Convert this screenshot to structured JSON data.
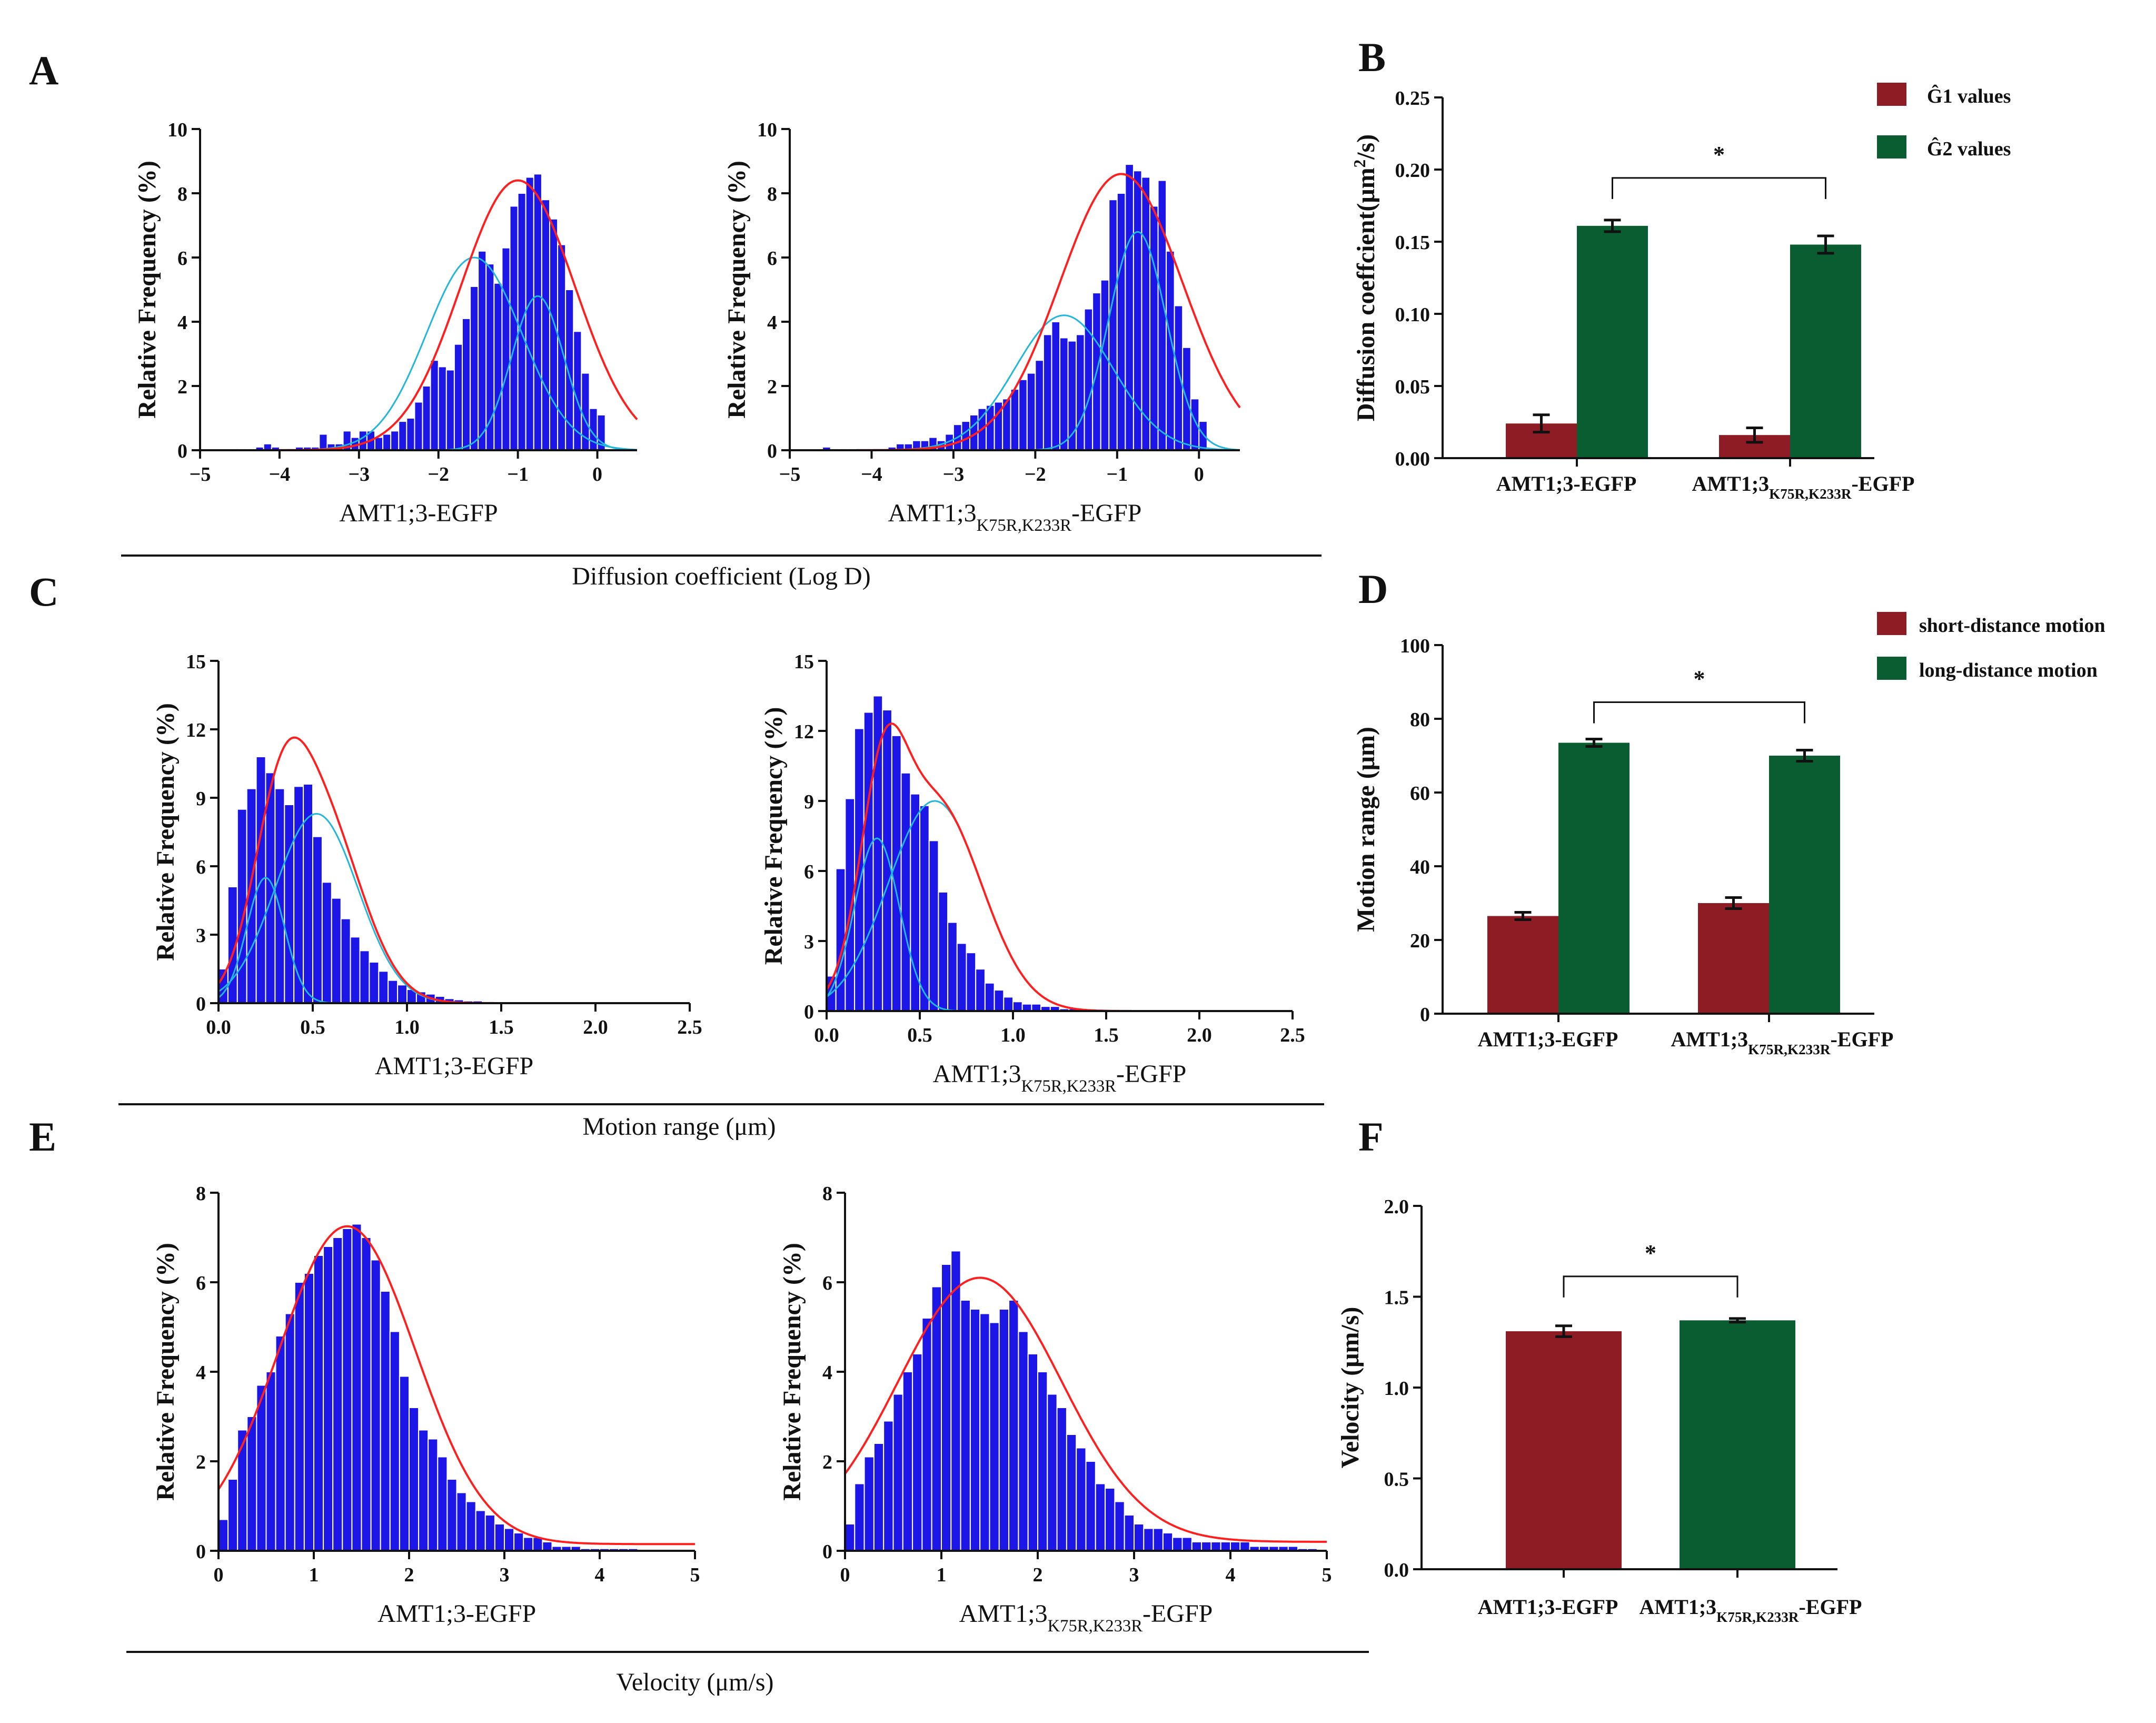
{
  "panel_labels": {
    "A": "A",
    "B": "B",
    "C": "C",
    "D": "D",
    "E": "E",
    "F": "F"
  },
  "colors": {
    "hist": "#1c17e6",
    "fit": "#ff1f1f",
    "comp": "#21b6dc",
    "red_bar": "#8e1c24",
    "green_bar": "#0a5d31"
  },
  "group_titles": {
    "diffusion": "Diffusion coefficient (Log D)",
    "motion": "Motion range (μm)",
    "velocity": "Velocity (μm/s)"
  },
  "chart_data": [
    {
      "id": "A1",
      "type": "bar",
      "title": "",
      "xlabel": "AMT1;3-EGFP",
      "ylabel": "Relative Frequency (%)",
      "xlim": [
        -5,
        0.5
      ],
      "ylim": [
        0,
        10
      ],
      "xticks": [
        -5,
        -4,
        -3,
        -2,
        -1,
        0
      ],
      "yticks": [
        0,
        2,
        4,
        6,
        8,
        10
      ],
      "bin_start": -4.6,
      "bin_width": 0.1,
      "values": [
        0.05,
        0.05,
        0.05,
        0.1,
        0.2,
        0.1,
        0.05,
        0.05,
        0.1,
        0.1,
        0.1,
        0.5,
        0.2,
        0.2,
        0.6,
        0.4,
        0.6,
        0.6,
        0.4,
        0.5,
        0.6,
        0.9,
        1.0,
        1.5,
        2.0,
        2.8,
        2.6,
        2.5,
        3.3,
        4.1,
        5.1,
        6.2,
        5.8,
        5.2,
        6.3,
        7.6,
        8.0,
        8.5,
        8.6,
        7.8,
        7.2,
        6.4,
        5.0,
        3.7,
        2.4,
        1.3,
        1.1
      ],
      "fit": [
        {
          "mu": -1.0,
          "sigma": 0.72,
          "amp": 8.4
        }
      ],
      "components": [
        {
          "mu": -1.55,
          "sigma": 0.6,
          "amp": 6.0
        },
        {
          "mu": -0.75,
          "sigma": 0.33,
          "amp": 4.8
        }
      ]
    },
    {
      "id": "A2",
      "type": "bar",
      "title": "",
      "xlabel": "AMT1;3",
      "xlabel_sub": "K75R,K233R",
      "xlabel_suffix": "-EGFP",
      "ylabel": "Relative Frequency (%)",
      "xlim": [
        -5,
        0.5
      ],
      "ylim": [
        0,
        10
      ],
      "xticks": [
        -5,
        -4,
        -3,
        -2,
        -1,
        0
      ],
      "yticks": [
        0,
        2,
        4,
        6,
        8,
        10
      ],
      "bin_start": -4.6,
      "bin_width": 0.1,
      "values": [
        0.1,
        0.05,
        0.05,
        0.05,
        0.05,
        0.05,
        0.05,
        0.05,
        0.1,
        0.2,
        0.2,
        0.3,
        0.3,
        0.4,
        0.3,
        0.5,
        0.8,
        0.9,
        1.1,
        1.3,
        1.4,
        1.5,
        1.6,
        1.9,
        2.2,
        2.4,
        2.8,
        3.6,
        4.0,
        3.5,
        3.4,
        3.6,
        4.4,
        4.9,
        5.3,
        7.8,
        8.0,
        8.9,
        8.7,
        8.5,
        7.6,
        8.4,
        6.2,
        4.5,
        3.2,
        1.6,
        0.9
      ],
      "fit": [
        {
          "mu": -0.95,
          "sigma": 0.75,
          "amp": 8.6
        }
      ],
      "components": [
        {
          "mu": -1.65,
          "sigma": 0.6,
          "amp": 4.2
        },
        {
          "mu": -0.75,
          "sigma": 0.35,
          "amp": 6.8
        }
      ]
    },
    {
      "id": "B",
      "type": "bar",
      "title": "",
      "ylabel": "Diffusion coeffcient(μm²/s)",
      "ylabel_main": "Diffusion coeffcient(μm",
      "ylabel_sup": "2",
      "ylabel_tail": "/s)",
      "ylim": [
        0,
        0.25
      ],
      "yticks": [
        0.0,
        0.05,
        0.1,
        0.15,
        0.2,
        0.25
      ],
      "ytick_labels": [
        "0.00",
        "0.05",
        "0.10",
        "0.15",
        "0.20",
        "0.25"
      ],
      "categories": [
        "AMT1;3-EGFP",
        "AMT1;3K75R,K233R-EGFP"
      ],
      "category_labels": [
        {
          "main": "AMT1;3-EGFP",
          "sub": "",
          "suffix": ""
        },
        {
          "main": "AMT1;3",
          "sub": "K75R,K233R",
          "suffix": "-EGFP"
        }
      ],
      "series": [
        {
          "name": "Ĝ1 values",
          "values": [
            0.024,
            0.016
          ],
          "errors": [
            0.006,
            0.005
          ]
        },
        {
          "name": "Ĝ2 values",
          "values": [
            0.161,
            0.148
          ],
          "errors": [
            0.004,
            0.006
          ]
        }
      ],
      "significance": "*"
    },
    {
      "id": "C1",
      "type": "bar",
      "title": "",
      "xlabel": "AMT1;3-EGFP",
      "ylabel": "Relative Frequency (%)",
      "xlim": [
        0,
        2.5
      ],
      "ylim": [
        0,
        15
      ],
      "xticks": [
        0,
        0.5,
        1,
        1.5,
        2,
        2.5
      ],
      "xtick_labels": [
        "0.0",
        "0.5",
        "1.0",
        "1.5",
        "2.0",
        "2.5"
      ],
      "yticks": [
        0,
        3,
        6,
        9,
        12,
        15
      ],
      "bin_start": 0,
      "bin_width": 0.05,
      "values": [
        1.5,
        5.1,
        8.5,
        9.4,
        10.8,
        10.1,
        9.4,
        8.7,
        9.5,
        9.6,
        7.3,
        5.3,
        4.6,
        3.7,
        2.9,
        2.3,
        1.8,
        1.4,
        1.0,
        0.8,
        0.6,
        0.5,
        0.4,
        0.3,
        0.2,
        0.15,
        0.1,
        0.1,
        0.05,
        0.05,
        0.05,
        0.02,
        0.02,
        0.02,
        0.02,
        0.01,
        0.01,
        0.01,
        0.01,
        0.01
      ],
      "fit": [
        {
          "mu": 0.32,
          "sigma": 0.14,
          "amp": 5.3
        },
        {
          "mu": 0.53,
          "sigma": 0.22,
          "amp": 8.5
        }
      ],
      "components": [
        {
          "mu": 0.25,
          "sigma": 0.1,
          "amp": 5.5
        },
        {
          "mu": 0.52,
          "sigma": 0.22,
          "amp": 8.3
        }
      ]
    },
    {
      "id": "C2",
      "type": "bar",
      "title": "",
      "xlabel": "AMT1;3",
      "xlabel_sub": "K75R,K233R",
      "xlabel_suffix": "-EGFP",
      "ylabel": "Relative Frequency (%)",
      "xlim": [
        0,
        2.5
      ],
      "ylim": [
        0,
        15
      ],
      "xticks": [
        0,
        0.5,
        1,
        1.5,
        2,
        2.5
      ],
      "xtick_labels": [
        "0.0",
        "0.5",
        "1.0",
        "1.5",
        "2.0",
        "2.5"
      ],
      "yticks": [
        0,
        3,
        6,
        9,
        12,
        15
      ],
      "bin_start": 0,
      "bin_width": 0.05,
      "values": [
        1.5,
        6.1,
        9.1,
        12.1,
        12.8,
        13.5,
        12.9,
        11.8,
        10.2,
        9.3,
        8.8,
        7.3,
        5.1,
        3.8,
        2.9,
        2.5,
        1.8,
        1.2,
        0.9,
        0.6,
        0.4,
        0.3,
        0.3,
        0.2,
        0.2,
        0.1,
        0.1,
        0.05,
        0.05,
        0.05,
        0.02,
        0.02,
        0.02,
        0.02,
        0.01,
        0.01,
        0.01,
        0.01,
        0.01,
        0.01
      ],
      "fit": [
        {
          "mu": 0.3,
          "sigma": 0.12,
          "amp": 7.0
        },
        {
          "mu": 0.58,
          "sigma": 0.25,
          "amp": 9.0
        }
      ],
      "components": [
        {
          "mu": 0.27,
          "sigma": 0.12,
          "amp": 7.4
        },
        {
          "mu": 0.58,
          "sigma": 0.25,
          "amp": 9.0
        }
      ]
    },
    {
      "id": "D",
      "type": "bar",
      "title": "",
      "ylabel": "Motion range (μm)",
      "ylim": [
        0,
        100
      ],
      "yticks": [
        0,
        20,
        40,
        60,
        80,
        100
      ],
      "categories": [
        "AMT1;3-EGFP",
        "AMT1;3K75R,K233R-EGFP"
      ],
      "category_labels": [
        {
          "main": "AMT1;3-EGFP",
          "sub": "",
          "suffix": ""
        },
        {
          "main": "AMT1;3",
          "sub": "K75R,K233R",
          "suffix": "-EGFP"
        }
      ],
      "series": [
        {
          "name": "short-distance motion",
          "values": [
            26.5,
            30.0
          ],
          "errors": [
            1.0,
            1.5
          ]
        },
        {
          "name": "long-distance motion",
          "values": [
            73.5,
            70.0
          ],
          "errors": [
            1.0,
            1.5
          ]
        }
      ],
      "significance": "*"
    },
    {
      "id": "E1",
      "type": "bar",
      "title": "",
      "xlabel": "AMT1;3-EGFP",
      "ylabel": "Relative Frequency (%)",
      "xlim": [
        0,
        5
      ],
      "ylim": [
        0,
        8
      ],
      "xticks": [
        0,
        1,
        2,
        3,
        4,
        5
      ],
      "yticks": [
        0,
        2,
        4,
        6,
        8
      ],
      "bin_start": 0,
      "bin_width": 0.1,
      "values": [
        0.7,
        1.6,
        2.7,
        3.0,
        3.7,
        4.0,
        4.8,
        5.3,
        6.0,
        6.2,
        6.6,
        6.8,
        7.0,
        7.2,
        7.3,
        7.0,
        6.5,
        5.8,
        4.9,
        3.9,
        3.2,
        2.7,
        2.5,
        2.1,
        1.6,
        1.3,
        1.1,
        0.9,
        0.8,
        0.6,
        0.5,
        0.4,
        0.3,
        0.3,
        0.2,
        0.1,
        0.1,
        0.1,
        0.05,
        0.05,
        0.05,
        0.05,
        0.05,
        0.05
      ],
      "fit": [
        {
          "mu": 1.35,
          "sigma": 0.72,
          "amp": 7.1,
          "base": 0.15
        }
      ],
      "components": []
    },
    {
      "id": "E2",
      "type": "bar",
      "title": "",
      "xlabel": "AMT1;3",
      "xlabel_sub": "K75R,K233R",
      "xlabel_suffix": "-EGFP",
      "ylabel": "Relative Frequency (%)",
      "xlim": [
        0,
        5
      ],
      "ylim": [
        0,
        8
      ],
      "xticks": [
        0,
        1,
        2,
        3,
        4,
        5
      ],
      "yticks": [
        0,
        2,
        4,
        6,
        8
      ],
      "bin_start": 0,
      "bin_width": 0.1,
      "values": [
        0.6,
        1.5,
        2.1,
        2.4,
        2.9,
        3.5,
        4.0,
        4.4,
        5.2,
        5.9,
        6.4,
        6.7,
        5.6,
        5.4,
        5.3,
        5.1,
        5.4,
        5.6,
        4.9,
        4.4,
        4.0,
        3.5,
        3.2,
        2.6,
        2.3,
        2.0,
        1.5,
        1.4,
        1.1,
        0.8,
        0.6,
        0.5,
        0.5,
        0.4,
        0.3,
        0.3,
        0.2,
        0.2,
        0.2,
        0.2,
        0.2,
        0.2,
        0.1,
        0.1,
        0.1,
        0.1,
        0.1,
        0.05,
        0.05
      ],
      "fit": [
        {
          "mu": 1.4,
          "sigma": 0.85,
          "amp": 5.9,
          "base": 0.2
        }
      ],
      "components": []
    },
    {
      "id": "F",
      "type": "bar",
      "title": "",
      "ylabel": "Velocity (μm/s)",
      "ylim": [
        0,
        2
      ],
      "yticks": [
        0,
        0.5,
        1,
        1.5,
        2
      ],
      "ytick_labels": [
        "0.0",
        "0.5",
        "1.0",
        "1.5",
        "2.0"
      ],
      "categories": [
        "AMT1;3-EGFP",
        "AMT1;3K75R,K233R-EGFP"
      ],
      "category_labels": [
        {
          "main": "AMT1;3-EGFP",
          "sub": "",
          "suffix": ""
        },
        {
          "main": "AMT1;3",
          "sub": "K75R,K233R",
          "suffix": "-EGFP"
        }
      ],
      "values": [
        1.31,
        1.37
      ],
      "errors": [
        0.03,
        0.01
      ],
      "significance": "*"
    }
  ]
}
